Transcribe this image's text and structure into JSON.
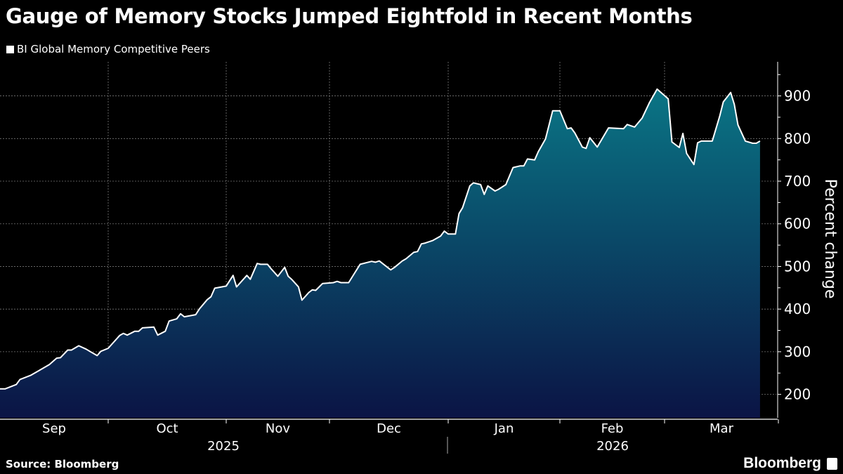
{
  "chart_data": {
    "type": "area",
    "title": "Gauge of Memory Stocks Jumped Eightfold in Recent Months",
    "ylabel": "Percent change",
    "ylim": [
      145,
      980
    ],
    "yticks": [
      200,
      300,
      400,
      500,
      600,
      700,
      800,
      900
    ],
    "grid": true,
    "legend_placement": "top-left",
    "xtick_labels": [
      "Sep",
      "Oct",
      "Nov",
      "Dec",
      "Jan",
      "Feb",
      "Mar"
    ],
    "year_labels": [
      "2025",
      "2026"
    ],
    "colors": {
      "line": "#ffffff",
      "fill_top": "#0a7585",
      "fill_bottom": "#0b1445"
    },
    "series": [
      {
        "name": "BI Global Memory Competitive Peers",
        "points": [
          [
            "2025-09-01",
            213
          ],
          [
            "2025-09-03",
            213
          ],
          [
            "2025-09-06",
            223
          ],
          [
            "2025-09-07",
            235
          ],
          [
            "2025-09-10",
            245
          ],
          [
            "2025-09-12",
            255
          ],
          [
            "2025-09-15",
            270
          ],
          [
            "2025-09-17",
            285
          ],
          [
            "2025-09-18",
            286
          ],
          [
            "2025-09-20",
            304
          ],
          [
            "2025-09-21",
            304
          ],
          [
            "2025-09-23",
            314
          ],
          [
            "2025-09-25",
            306
          ],
          [
            "2025-09-26",
            301
          ],
          [
            "2025-09-28",
            291
          ],
          [
            "2025-09-29",
            301
          ],
          [
            "2025-10-01",
            308
          ],
          [
            "2025-10-04",
            338
          ],
          [
            "2025-10-05",
            343
          ],
          [
            "2025-10-06",
            339
          ],
          [
            "2025-10-08",
            348
          ],
          [
            "2025-10-09",
            348
          ],
          [
            "2025-10-10",
            356
          ],
          [
            "2025-10-13",
            358
          ],
          [
            "2025-10-14",
            339
          ],
          [
            "2025-10-16",
            348
          ],
          [
            "2025-10-17",
            372
          ],
          [
            "2025-10-19",
            377
          ],
          [
            "2025-10-20",
            389
          ],
          [
            "2025-10-21",
            382
          ],
          [
            "2025-10-24",
            387
          ],
          [
            "2025-10-25",
            401
          ],
          [
            "2025-10-27",
            422
          ],
          [
            "2025-10-28",
            429
          ],
          [
            "2025-10-29",
            449
          ],
          [
            "2025-11-01",
            454
          ],
          [
            "2025-11-03",
            479
          ],
          [
            "2025-11-04",
            452
          ],
          [
            "2025-11-07",
            479
          ],
          [
            "2025-11-08",
            470
          ],
          [
            "2025-11-10",
            507
          ],
          [
            "2025-11-11",
            505
          ],
          [
            "2025-11-13",
            505
          ],
          [
            "2025-11-14",
            495
          ],
          [
            "2025-11-16",
            477
          ],
          [
            "2025-11-18",
            498
          ],
          [
            "2025-11-19",
            477
          ],
          [
            "2025-11-20",
            470
          ],
          [
            "2025-11-22",
            452
          ],
          [
            "2025-11-23",
            421
          ],
          [
            "2025-11-25",
            439
          ],
          [
            "2025-11-26",
            445
          ],
          [
            "2025-11-27",
            444
          ],
          [
            "2025-11-29",
            460
          ],
          [
            "2025-12-02",
            462
          ],
          [
            "2025-12-03",
            465
          ],
          [
            "2025-12-04",
            462
          ],
          [
            "2025-12-06",
            462
          ],
          [
            "2025-12-09",
            505
          ],
          [
            "2025-12-12",
            512
          ],
          [
            "2025-12-13",
            510
          ],
          [
            "2025-12-14",
            513
          ],
          [
            "2025-12-17",
            492
          ],
          [
            "2025-12-18",
            498
          ],
          [
            "2025-12-20",
            513
          ],
          [
            "2025-12-21",
            518
          ],
          [
            "2025-12-23",
            533
          ],
          [
            "2025-12-24",
            535
          ],
          [
            "2025-12-25",
            553
          ],
          [
            "2025-12-26",
            555
          ],
          [
            "2025-12-28",
            561
          ],
          [
            "2025-12-30",
            571
          ],
          [
            "2025-12-31",
            583
          ],
          [
            "2026-01-01",
            576
          ],
          [
            "2026-01-03",
            576
          ],
          [
            "2026-01-04",
            624
          ],
          [
            "2026-01-05",
            638
          ],
          [
            "2026-01-07",
            689
          ],
          [
            "2026-01-08",
            696
          ],
          [
            "2026-01-10",
            692
          ],
          [
            "2026-01-11",
            669
          ],
          [
            "2026-01-12",
            689
          ],
          [
            "2026-01-14",
            677
          ],
          [
            "2026-01-15",
            681
          ],
          [
            "2026-01-17",
            692
          ],
          [
            "2026-01-19",
            732
          ],
          [
            "2026-01-21",
            736
          ],
          [
            "2026-01-22",
            736
          ],
          [
            "2026-01-23",
            752
          ],
          [
            "2026-01-25",
            750
          ],
          [
            "2026-01-26",
            769
          ],
          [
            "2026-01-28",
            799
          ],
          [
            "2026-01-30",
            865
          ],
          [
            "2026-02-01",
            865
          ],
          [
            "2026-02-03",
            823
          ],
          [
            "2026-02-04",
            825
          ],
          [
            "2026-02-05",
            813
          ],
          [
            "2026-02-07",
            780
          ],
          [
            "2026-02-08",
            777
          ],
          [
            "2026-02-09",
            802
          ],
          [
            "2026-02-11",
            780
          ],
          [
            "2026-02-14",
            825
          ],
          [
            "2026-02-18",
            823
          ],
          [
            "2026-02-19",
            833
          ],
          [
            "2026-02-21",
            827
          ],
          [
            "2026-02-23",
            848
          ],
          [
            "2026-02-25",
            885
          ],
          [
            "2026-02-27",
            916
          ],
          [
            "2026-03-02",
            893
          ],
          [
            "2026-03-03",
            792
          ],
          [
            "2026-03-05",
            779
          ],
          [
            "2026-03-06",
            812
          ],
          [
            "2026-03-07",
            765
          ],
          [
            "2026-03-09",
            739
          ],
          [
            "2026-03-10",
            790
          ],
          [
            "2026-03-11",
            794
          ],
          [
            "2026-03-13",
            794
          ],
          [
            "2026-03-14",
            794
          ],
          [
            "2026-03-16",
            852
          ],
          [
            "2026-03-17",
            886
          ],
          [
            "2026-03-19",
            908
          ],
          [
            "2026-03-20",
            880
          ],
          [
            "2026-03-21",
            832
          ],
          [
            "2026-03-23",
            794
          ],
          [
            "2026-03-25",
            789
          ],
          [
            "2026-03-26",
            789
          ],
          [
            "2026-03-27",
            794
          ]
        ]
      }
    ]
  },
  "footer": {
    "source": "Source: Bloomberg",
    "logo": "Bloomberg"
  }
}
